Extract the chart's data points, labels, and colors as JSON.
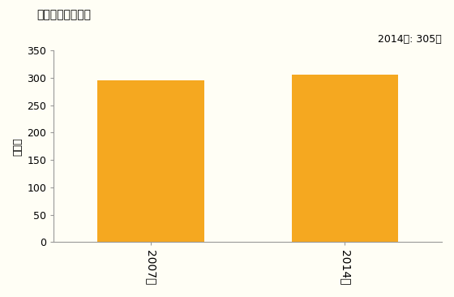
{
  "title": "卸売業の従業者数",
  "ylabel": "［人］",
  "categories": [
    "2007年",
    "2014年"
  ],
  "values": [
    295,
    305
  ],
  "bar_color": "#F5A820",
  "ylim": [
    0,
    350
  ],
  "yticks": [
    0,
    50,
    100,
    150,
    200,
    250,
    300,
    350
  ],
  "annotation": "2014年: 305人",
  "fig_bg_color": "#FFFEF5",
  "plot_bg_color": "#FFFEF5"
}
